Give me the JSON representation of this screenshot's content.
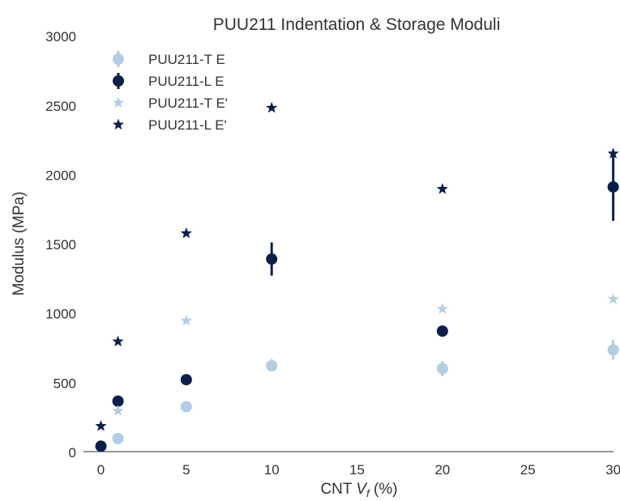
{
  "chart_data": {
    "type": "scatter",
    "title": "PUU211 Indentation & Storage Moduli",
    "xlabel": {
      "prefix": "CNT ",
      "var": "V",
      "sub": "f",
      "suffix": " (%)"
    },
    "ylabel": "Modulus (MPa)",
    "xlim": [
      -2,
      30
    ],
    "ylim": [
      0,
      3000
    ],
    "xticks": [
      0,
      5,
      10,
      15,
      20,
      25,
      30
    ],
    "yticks": [
      0,
      500,
      1000,
      1500,
      2000,
      2500,
      3000
    ],
    "grid": false,
    "legend_position": "top-left",
    "series": [
      {
        "name": "PUU211-T E",
        "marker": "circle-errorbar",
        "color": "#b3cde3",
        "x": [
          0,
          1,
          5,
          10,
          20,
          30
        ],
        "y": [
          45,
          100,
          330,
          625,
          605,
          740
        ],
        "err": [
          0,
          20,
          25,
          30,
          55,
          70
        ]
      },
      {
        "name": "PUU211-L E",
        "marker": "circle-errorbar",
        "color": "#0b1f4b",
        "x": [
          0,
          1,
          5,
          10,
          20,
          30
        ],
        "y": [
          45,
          370,
          525,
          1395,
          875,
          1915
        ],
        "err": [
          0,
          40,
          20,
          120,
          40,
          245
        ]
      },
      {
        "name": "PUU211-T E'",
        "marker": "star",
        "color": "#b3cde3",
        "x": [
          1,
          5,
          10,
          20,
          30
        ],
        "y": [
          300,
          950,
          640,
          1035,
          1105
        ]
      },
      {
        "name": "PUU211-L E'",
        "marker": "star",
        "color": "#0b1f4b",
        "x": [
          0,
          1,
          5,
          10,
          20,
          30
        ],
        "y": [
          190,
          800,
          1580,
          2485,
          1900,
          2155
        ]
      }
    ]
  }
}
